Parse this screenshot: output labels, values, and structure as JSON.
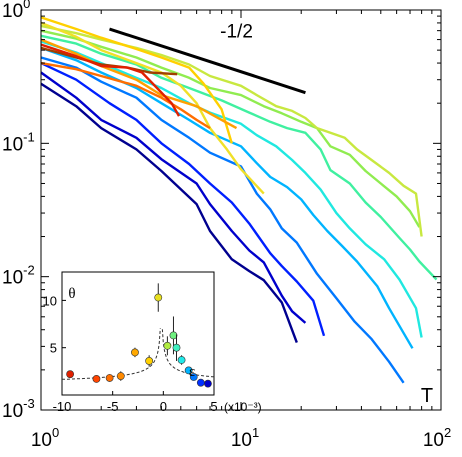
{
  "chart_data": [
    {
      "type": "line",
      "title": "",
      "xlabel": "T",
      "ylabel": "",
      "x_scale": "log",
      "y_scale": "log",
      "xlim": [
        1,
        100
      ],
      "ylim": [
        0.001,
        1
      ],
      "x_ticks": [
        {
          "value": 1,
          "base": "10",
          "exp": "0"
        },
        {
          "value": 10,
          "base": "10",
          "exp": "1"
        },
        {
          "value": 100,
          "base": "10",
          "exp": "2"
        }
      ],
      "y_ticks": [
        {
          "value": 1,
          "base": "10",
          "exp": "0"
        },
        {
          "value": 0.1,
          "base": "10",
          "exp": "-1"
        },
        {
          "value": 0.01,
          "base": "10",
          "exp": "-2"
        },
        {
          "value": 0.001,
          "base": "10",
          "exp": "-3"
        }
      ],
      "grid": false,
      "annotations": [
        {
          "text": "-1/2",
          "kind": "slope_reference",
          "x": [
            2.2,
            21
          ],
          "y": [
            0.72,
            0.24
          ],
          "label_at": [
            9.5,
            0.62
          ]
        }
      ],
      "series": [
        {
          "color": "#00008f",
          "points": [
            [
              1,
              0.28
            ],
            [
              1.5,
              0.19
            ],
            [
              2,
              0.13
            ],
            [
              3,
              0.09
            ],
            [
              4,
              0.062
            ],
            [
              6,
              0.035
            ],
            [
              7,
              0.022
            ],
            [
              9,
              0.0135
            ],
            [
              11,
              0.011
            ],
            [
              13,
              0.0094
            ],
            [
              16,
              0.0064
            ],
            [
              19,
              0.0032
            ]
          ]
        },
        {
          "color": "#0000cc",
          "points": [
            [
              1,
              0.34
            ],
            [
              1.5,
              0.22
            ],
            [
              2,
              0.15
            ],
            [
              3,
              0.11
            ],
            [
              4,
              0.076
            ],
            [
              6,
              0.05
            ],
            [
              7,
              0.035
            ],
            [
              9,
              0.022
            ],
            [
              11,
              0.0157
            ],
            [
              13,
              0.0128
            ],
            [
              16,
              0.0072
            ],
            [
              18,
              0.0055
            ],
            [
              21,
              0.0045
            ]
          ]
        },
        {
          "color": "#0020ff",
          "points": [
            [
              1,
              0.4
            ],
            [
              1.5,
              0.3
            ],
            [
              2.2,
              0.2
            ],
            [
              3,
              0.15
            ],
            [
              4,
              0.1
            ],
            [
              5.5,
              0.07
            ],
            [
              7,
              0.05
            ],
            [
              9,
              0.036
            ],
            [
              11,
              0.025
            ],
            [
              14,
              0.015
            ],
            [
              16,
              0.012
            ],
            [
              19,
              0.0092
            ],
            [
              23,
              0.0066
            ],
            [
              26,
              0.0036
            ]
          ]
        },
        {
          "color": "#0078ff",
          "points": [
            [
              1,
              0.44
            ],
            [
              1.5,
              0.37
            ],
            [
              2,
              0.29
            ],
            [
              3,
              0.22
            ],
            [
              4,
              0.15
            ],
            [
              5.5,
              0.11
            ],
            [
              7,
              0.085
            ],
            [
              10,
              0.067
            ],
            [
              12,
              0.042
            ],
            [
              14,
              0.032
            ],
            [
              16,
              0.023
            ],
            [
              19,
              0.018
            ],
            [
              24,
              0.0105
            ],
            [
              30,
              0.0069
            ],
            [
              37,
              0.0046
            ],
            [
              45,
              0.0034
            ],
            [
              55,
              0.0023
            ],
            [
              65,
              0.0016
            ]
          ]
        },
        {
          "color": "#00b4ff",
          "points": [
            [
              1,
              0.52
            ],
            [
              1.5,
              0.42
            ],
            [
              2,
              0.34
            ],
            [
              3,
              0.26
            ],
            [
              4,
              0.2
            ],
            [
              5.5,
              0.15
            ],
            [
              7,
              0.12
            ],
            [
              10,
              0.095
            ],
            [
              12,
              0.071
            ],
            [
              14,
              0.056
            ],
            [
              17,
              0.047
            ],
            [
              20,
              0.038
            ],
            [
              23,
              0.029
            ],
            [
              27,
              0.022
            ],
            [
              32,
              0.017
            ],
            [
              38,
              0.013
            ],
            [
              48,
              0.0085
            ],
            [
              55,
              0.0058
            ],
            [
              72,
              0.0029
            ]
          ]
        },
        {
          "color": "#20e8e0",
          "points": [
            [
              1,
              0.58
            ],
            [
              1.5,
              0.48
            ],
            [
              2,
              0.4
            ],
            [
              3,
              0.31
            ],
            [
              4,
              0.26
            ],
            [
              5.5,
              0.2
            ],
            [
              7,
              0.17
            ],
            [
              10,
              0.14
            ],
            [
              12,
              0.115
            ],
            [
              15,
              0.095
            ],
            [
              18,
              0.075
            ],
            [
              21,
              0.06
            ],
            [
              25,
              0.045
            ],
            [
              30,
              0.03
            ],
            [
              35,
              0.023
            ],
            [
              42,
              0.0175
            ],
            [
              52,
              0.0135
            ],
            [
              62,
              0.0095
            ],
            [
              75,
              0.0058
            ],
            [
              80,
              0.0035
            ]
          ]
        },
        {
          "color": "#40f0a0",
          "points": [
            [
              1,
              0.64
            ],
            [
              1.5,
              0.56
            ],
            [
              2,
              0.47
            ],
            [
              3,
              0.39
            ],
            [
              4,
              0.31
            ],
            [
              5.5,
              0.26
            ],
            [
              8,
              0.21
            ],
            [
              11,
              0.17
            ],
            [
              14,
              0.145
            ],
            [
              17,
              0.13
            ],
            [
              21,
              0.12
            ],
            [
              25,
              0.09
            ],
            [
              28,
              0.063
            ],
            [
              35,
              0.05
            ],
            [
              42,
              0.036
            ],
            [
              50,
              0.028
            ],
            [
              62,
              0.0195
            ],
            [
              70,
              0.016
            ],
            [
              78,
              0.013
            ],
            [
              95,
              0.0095
            ]
          ]
        },
        {
          "color": "#90ec50",
          "points": [
            [
              1,
              0.7
            ],
            [
              1.5,
              0.61
            ],
            [
              2,
              0.53
            ],
            [
              3,
              0.44
            ],
            [
              4,
              0.37
            ],
            [
              5.5,
              0.31
            ],
            [
              7,
              0.26
            ],
            [
              10,
              0.23
            ],
            [
              13,
              0.19
            ],
            [
              16,
              0.168
            ],
            [
              20,
              0.145
            ],
            [
              24,
              0.13
            ],
            [
              28,
              0.095
            ],
            [
              35,
              0.082
            ],
            [
              42,
              0.062
            ],
            [
              50,
              0.05
            ],
            [
              60,
              0.04
            ],
            [
              70,
              0.031
            ],
            [
              78,
              0.0235
            ]
          ]
        },
        {
          "color": "#c8e840",
          "points": [
            [
              1,
              0.76
            ],
            [
              1.5,
              0.67
            ],
            [
              2,
              0.6
            ],
            [
              3,
              0.52
            ],
            [
              4,
              0.46
            ],
            [
              5.5,
              0.39
            ],
            [
              7,
              0.32
            ],
            [
              10,
              0.27
            ],
            [
              12,
              0.23
            ],
            [
              15,
              0.19
            ],
            [
              18,
              0.175
            ],
            [
              21,
              0.155
            ],
            [
              24,
              0.13
            ],
            [
              28,
              0.12
            ],
            [
              33,
              0.11
            ],
            [
              38,
              0.09
            ],
            [
              45,
              0.075
            ],
            [
              55,
              0.06
            ],
            [
              65,
              0.048
            ],
            [
              75,
              0.042
            ],
            [
              80,
              0.02
            ]
          ]
        },
        {
          "color": "#f0e028",
          "points": [
            [
              1,
              0.8
            ],
            [
              1.5,
              0.63
            ],
            [
              2,
              0.5
            ],
            [
              3,
              0.4
            ],
            [
              4,
              0.34
            ],
            [
              5,
              0.27
            ],
            [
              6,
              0.2
            ],
            [
              7,
              0.13
            ],
            [
              8.5,
              0.09
            ],
            [
              10,
              0.064
            ],
            [
              13,
              0.042
            ]
          ]
        },
        {
          "color": "#ffd000",
          "points": [
            [
              1,
              0.88
            ],
            [
              1.5,
              0.72
            ],
            [
              2,
              0.62
            ],
            [
              3,
              0.51
            ],
            [
              4,
              0.44
            ],
            [
              5.5,
              0.37
            ],
            [
              6.5,
              0.28
            ],
            [
              8,
              0.18
            ],
            [
              9,
              0.1
            ]
          ]
        },
        {
          "color": "#ffa000",
          "points": [
            [
              1,
              0.6
            ],
            [
              1.5,
              0.47
            ],
            [
              2,
              0.38
            ],
            [
              3,
              0.3
            ],
            [
              4,
              0.23
            ],
            [
              6,
              0.19
            ],
            [
              8,
              0.15
            ],
            [
              9.5,
              0.13
            ]
          ]
        },
        {
          "color": "#ff6e00",
          "points": [
            [
              1,
              0.4
            ],
            [
              1.5,
              0.36
            ],
            [
              2,
              0.32
            ],
            [
              3,
              0.27
            ],
            [
              4,
              0.22
            ],
            [
              5,
              0.18
            ],
            [
              6,
              0.15
            ],
            [
              7,
              0.13
            ]
          ]
        },
        {
          "color": "#a04000",
          "points": [
            [
              1,
              0.52
            ],
            [
              1.5,
              0.44
            ],
            [
              2,
              0.39
            ],
            [
              2.7,
              0.37
            ],
            [
              3.5,
              0.34
            ],
            [
              4.8,
              0.33
            ]
          ]
        },
        {
          "color": "#e02000",
          "points": [
            [
              1,
              0.55
            ],
            [
              1.5,
              0.45
            ],
            [
              2,
              0.38
            ],
            [
              2.7,
              0.37
            ],
            [
              3.2,
              0.34
            ],
            [
              3.8,
              0.26
            ],
            [
              4.5,
              0.2
            ],
            [
              4.9,
              0.16
            ]
          ]
        }
      ]
    },
    {
      "type": "scatter",
      "title": "",
      "xlabel": "ε",
      "ylabel": "θ",
      "x_unit": "(x10⁻³)",
      "xlim": [
        -10,
        5
      ],
      "ylim": [
        0,
        13
      ],
      "x_ticks": [
        "-10",
        "-5",
        "0",
        "5"
      ],
      "y_ticks": [
        "5",
        "10"
      ],
      "grid": false,
      "fit_curve": "dashed",
      "series": [
        {
          "color": "#e02000",
          "points": [
            [
              -9.2,
              2.2
            ]
          ],
          "err": [
            0.2
          ]
        },
        {
          "color": "#ff4400",
          "points": [
            [
              -6.6,
              1.7
            ]
          ],
          "err": [
            0.3
          ]
        },
        {
          "color": "#ff6e00",
          "points": [
            [
              -5.3,
              1.8
            ]
          ],
          "err": [
            0.4
          ]
        },
        {
          "color": "#ff8a00",
          "points": [
            [
              -4.2,
              2.0
            ]
          ],
          "err": [
            0.5
          ]
        },
        {
          "color": "#ffa800",
          "points": [
            [
              -2.8,
              4.5
            ]
          ],
          "err": [
            0.5
          ]
        },
        {
          "color": "#ffd000",
          "points": [
            [
              -1.4,
              3.6
            ]
          ],
          "err": [
            0.6
          ]
        },
        {
          "color": "#e8e020",
          "points": [
            [
              -0.5,
              10.3
            ]
          ],
          "err": [
            1.5
          ]
        },
        {
          "color": "#b0ec40",
          "points": [
            [
              0.4,
              5.2
            ]
          ],
          "err": [
            1.0
          ]
        },
        {
          "color": "#70f080",
          "points": [
            [
              1.0,
              6.3
            ]
          ],
          "err": [
            2.0
          ]
        },
        {
          "color": "#40f0c0",
          "points": [
            [
              1.3,
              5.0
            ]
          ],
          "err": [
            1.4
          ]
        },
        {
          "color": "#20e8e8",
          "points": [
            [
              1.8,
              3.7
            ]
          ],
          "err": [
            0.5
          ]
        },
        {
          "color": "#00b4ff",
          "points": [
            [
              2.5,
              2.6
            ]
          ],
          "err": [
            0.2
          ]
        },
        {
          "color": "#0078ff",
          "points": [
            [
              3.0,
              1.9
            ]
          ],
          "err": [
            0.2
          ]
        },
        {
          "color": "#0030ff",
          "points": [
            [
              3.7,
              1.3
            ]
          ],
          "err": [
            0.2
          ]
        },
        {
          "color": "#0000cc",
          "points": [
            [
              4.4,
              1.2
            ]
          ],
          "err": [
            0.2
          ]
        }
      ]
    }
  ]
}
